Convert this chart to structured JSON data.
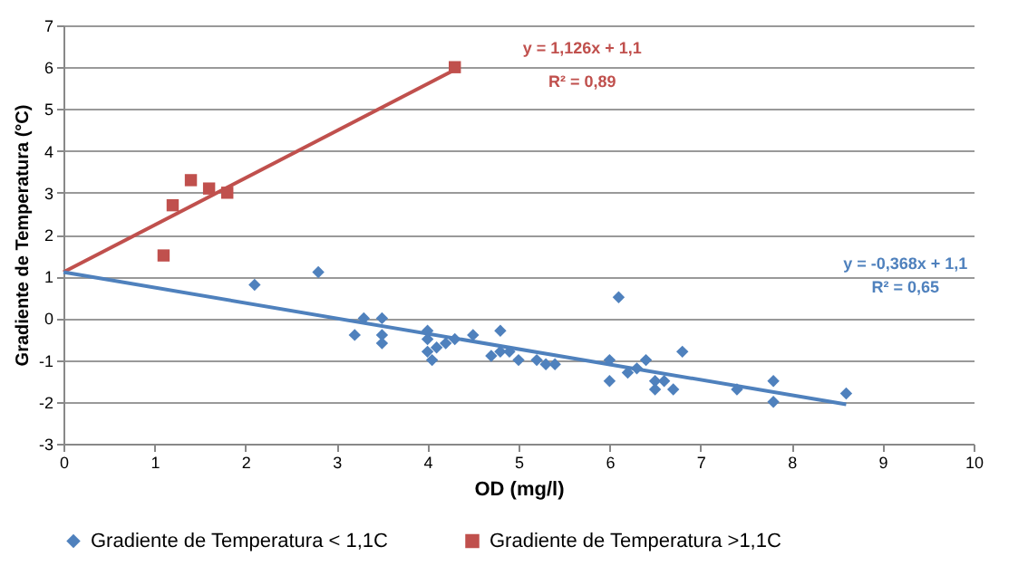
{
  "chart_data": {
    "type": "scatter",
    "xlabel": "OD (mg/l)",
    "ylabel": "Gradiente de Temperatura (°C)",
    "xlim": [
      0,
      10
    ],
    "xticks": [
      0,
      1,
      2,
      3,
      4,
      5,
      6,
      7,
      8,
      9,
      10
    ],
    "ylim": [
      -3,
      7
    ],
    "yticks": [
      -3,
      -2,
      -1,
      0,
      1,
      2,
      3,
      4,
      5,
      6,
      7
    ],
    "grid": "y",
    "legend": "bottom",
    "annotations": [
      "y = 1,126x + 1,1",
      "R² = 0,89",
      "y = -0,368x + 1,1",
      "R² = 0,65"
    ],
    "series": [
      {
        "name": "Gradiente de Temperatura < 1,1C",
        "marker": "diamond",
        "color": "#4f81bd",
        "x": [
          2.1,
          2.8,
          3.2,
          3.3,
          3.5,
          3.5,
          3.5,
          4.0,
          4.0,
          4.0,
          4.05,
          4.1,
          4.2,
          4.3,
          4.5,
          4.7,
          4.8,
          4.8,
          4.9,
          5.0,
          5.2,
          5.3,
          5.4,
          6.0,
          6.0,
          6.1,
          6.2,
          6.3,
          6.4,
          6.5,
          6.5,
          6.6,
          6.7,
          6.8,
          7.4,
          7.8,
          7.8,
          8.6
        ],
        "values": [
          0.8,
          1.1,
          -0.4,
          0,
          0,
          -0.4,
          -0.6,
          -0.3,
          -0.5,
          -0.8,
          -1.0,
          -0.7,
          -0.6,
          -0.5,
          -0.4,
          -0.9,
          -0.3,
          -0.8,
          -0.8,
          -1.0,
          -1.0,
          -1.1,
          -1.1,
          -1.0,
          -1.5,
          0.5,
          -1.3,
          -1.2,
          -1.0,
          -1.5,
          -1.7,
          -1.5,
          -1.7,
          -0.8,
          -1.7,
          -1.5,
          -2.0,
          -1.8
        ]
      },
      {
        "name": "Gradiente de Temperatura >1,1C",
        "marker": "square",
        "color": "#c0504d",
        "x": [
          1.1,
          1.2,
          1.4,
          1.6,
          1.8,
          4.3
        ],
        "values": [
          1.5,
          2.7,
          3.3,
          3.1,
          3.0,
          6.0
        ]
      },
      {
        "type": "line",
        "color": "#c0504d",
        "x": [
          0,
          4.3
        ],
        "values": [
          1.1,
          5.94
        ]
      },
      {
        "type": "line",
        "color": "#4f81bd",
        "x": [
          0,
          8.6
        ],
        "values": [
          1.1,
          -2.06
        ]
      }
    ]
  }
}
